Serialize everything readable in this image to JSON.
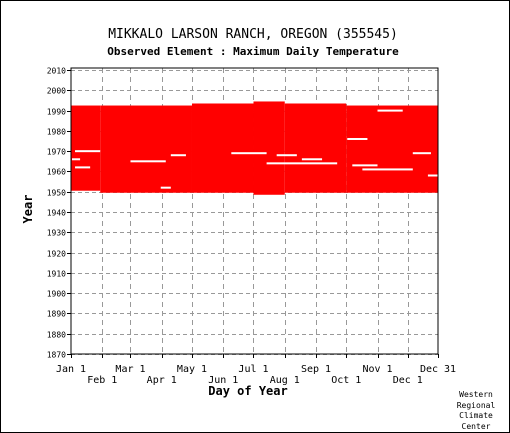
{
  "chart_data": {
    "type": "heatmap",
    "title": "MIKKALO LARSON RANCH, OREGON   (355545)",
    "subtitle": "Observed Element : Maximum Daily Temperature",
    "xlabel": "Day of Year",
    "ylabel": "Year",
    "xlim": [
      1,
      365
    ],
    "ylim": [
      1870,
      2011
    ],
    "grid": true,
    "mark_color": "#ff0000",
    "month_ticks_upper": [
      {
        "label": "Jan 1",
        "day": 1
      },
      {
        "label": "Mar 1",
        "day": 60
      },
      {
        "label": "May 1",
        "day": 121
      },
      {
        "label": "Jul 1",
        "day": 182
      },
      {
        "label": "Sep 1",
        "day": 244
      },
      {
        "label": "Nov 1",
        "day": 305
      },
      {
        "label": "Dec 31",
        "day": 365
      }
    ],
    "month_ticks_lower": [
      {
        "label": "Feb 1",
        "day": 32
      },
      {
        "label": "Apr 1",
        "day": 91
      },
      {
        "label": "Jun 1",
        "day": 152
      },
      {
        "label": "Aug 1",
        "day": 213
      },
      {
        "label": "Oct 1",
        "day": 274
      },
      {
        "label": "Dec 1",
        "day": 335
      }
    ],
    "year_ticks": [
      {
        "label": "1870",
        "year": 1870
      },
      {
        "label": "1880",
        "year": 1880
      },
      {
        "label": "1890",
        "year": 1890
      },
      {
        "label": "1900",
        "year": 1900
      },
      {
        "label": "1910",
        "year": 1910
      },
      {
        "label": "1920",
        "year": 1920
      },
      {
        "label": "1930",
        "year": 1930
      },
      {
        "label": "1940",
        "year": 1940
      },
      {
        "label": "1950",
        "year": 1950
      },
      {
        "label": "1960",
        "year": 1960
      },
      {
        "label": "1970",
        "year": 1970
      },
      {
        "label": "1980",
        "year": 1980
      },
      {
        "label": "1990",
        "year": 1990
      },
      {
        "label": "2000",
        "year": 2000
      },
      {
        "label": "2010",
        "year": 2010
      }
    ],
    "observed_periods": [
      {
        "day_start": 1,
        "day_end": 30,
        "year_start": 1951,
        "year_end": 1992
      },
      {
        "day_start": 30,
        "day_end": 121,
        "year_start": 1950,
        "year_end": 1992
      },
      {
        "day_start": 121,
        "day_end": 182,
        "year_start": 1950,
        "year_end": 1993
      },
      {
        "day_start": 182,
        "day_end": 213,
        "year_start": 1949,
        "year_end": 1994
      },
      {
        "day_start": 213,
        "day_end": 274,
        "year_start": 1950,
        "year_end": 1993
      },
      {
        "day_start": 274,
        "day_end": 365,
        "year_start": 1950,
        "year_end": 1992
      }
    ],
    "missing_spans": [
      {
        "year": 1970,
        "day_start": 5,
        "day_end": 30
      },
      {
        "year": 1969,
        "day_start": 160,
        "day_end": 195
      },
      {
        "year": 1968,
        "day_start": 205,
        "day_end": 225
      },
      {
        "year": 1966,
        "day_start": 2,
        "day_end": 10
      },
      {
        "year": 1966,
        "day_start": 230,
        "day_end": 250
      },
      {
        "year": 1965,
        "day_start": 60,
        "day_end": 95
      },
      {
        "year": 1964,
        "day_start": 195,
        "day_end": 265
      },
      {
        "year": 1963,
        "day_start": 280,
        "day_end": 305
      },
      {
        "year": 1962,
        "day_start": 5,
        "day_end": 20
      },
      {
        "year": 1961,
        "day_start": 290,
        "day_end": 340
      },
      {
        "year": 1976,
        "day_start": 275,
        "day_end": 295
      },
      {
        "year": 1969,
        "day_start": 340,
        "day_end": 358
      },
      {
        "year": 1968,
        "day_start": 100,
        "day_end": 115
      },
      {
        "year": 1958,
        "day_start": 355,
        "day_end": 365
      },
      {
        "year": 1990,
        "day_start": 305,
        "day_end": 330
      },
      {
        "year": 1952,
        "day_start": 90,
        "day_end": 100
      }
    ]
  },
  "credit": [
    "Western",
    "Regional",
    "Climate",
    "Center"
  ]
}
